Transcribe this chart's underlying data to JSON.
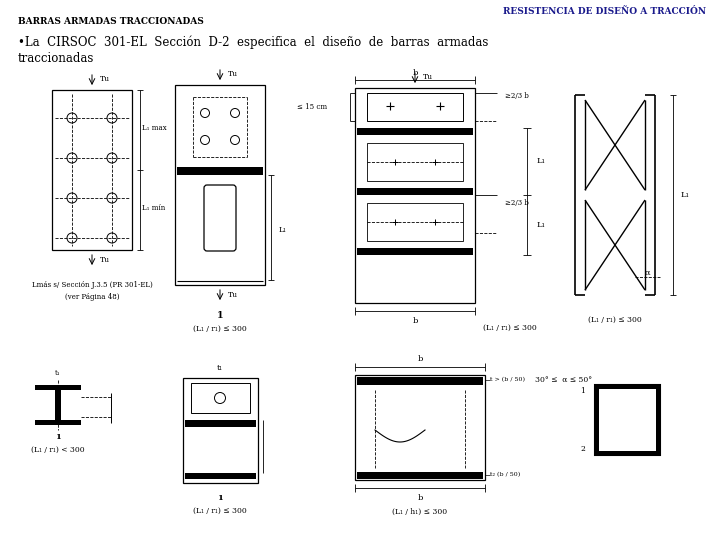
{
  "bg_color": "#ffffff",
  "title_left": "BARRAS ARMADAS TRACCIONADAS",
  "title_right": "RESISTENCIA DE DISEÑO A TRACCIÓN",
  "body_line1": "•La  CIRSOC  301-EL  Sección  D-2  especifica  el  diseño  de  barras  armadas",
  "body_line2": "traccionadas",
  "title_fontsize": 6.5,
  "body_fontsize": 8.5,
  "title_color": "#000000",
  "title_right_color": "#1a1a8c",
  "fig_width": 7.2,
  "fig_height": 5.4
}
